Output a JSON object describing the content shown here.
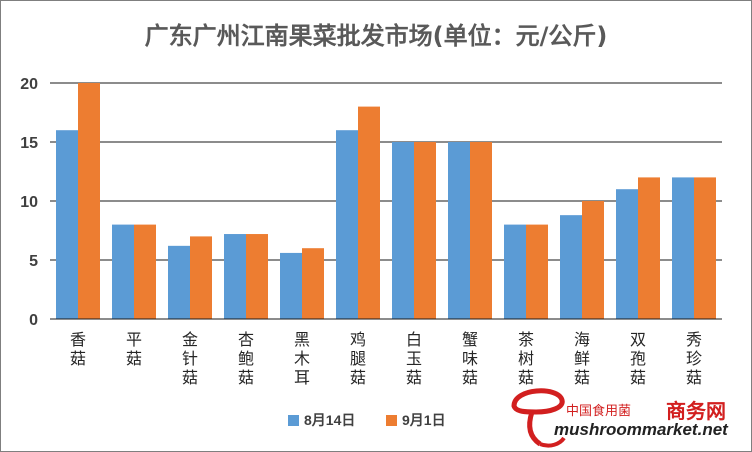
{
  "chart_data": {
    "type": "bar",
    "title": "广东广州江南果菜批发市场(单位：元/公斤)",
    "categories": [
      [
        "香",
        "菇"
      ],
      [
        "平",
        "菇"
      ],
      [
        "金",
        "针",
        "菇"
      ],
      [
        "杏",
        "鲍",
        "菇"
      ],
      [
        "黑",
        "木",
        "耳"
      ],
      [
        "鸡",
        "腿",
        "菇"
      ],
      [
        "白",
        "玉",
        "菇"
      ],
      [
        "蟹",
        "味",
        "菇"
      ],
      [
        "茶",
        "树",
        "菇"
      ],
      [
        "海",
        "鲜",
        "菇"
      ],
      [
        "双",
        "孢",
        "菇"
      ],
      [
        "秀",
        "珍",
        "菇"
      ]
    ],
    "series": [
      {
        "name": "8月14日",
        "color": "#5b9bd5",
        "values": [
          16,
          8,
          6.2,
          7.2,
          5.6,
          16,
          15,
          15,
          8,
          8.8,
          11,
          12
        ]
      },
      {
        "name": "9月1日",
        "color": "#ed7d31",
        "values": [
          20,
          8,
          7,
          7.2,
          6,
          18,
          15,
          15,
          8,
          10,
          12,
          12
        ]
      }
    ],
    "yticks": [
      "0",
      "5",
      "10",
      "15",
      "20"
    ],
    "ylim": [
      0,
      20
    ],
    "grid": true,
    "legend_position": "bottom"
  },
  "watermark": {
    "logo_icon": "mushroom-logo-icon",
    "text_cn_a": "中国食用菌",
    "text_cn_b": "商务网",
    "url": "mushroommarket.net",
    "color": "#d21f1f"
  }
}
